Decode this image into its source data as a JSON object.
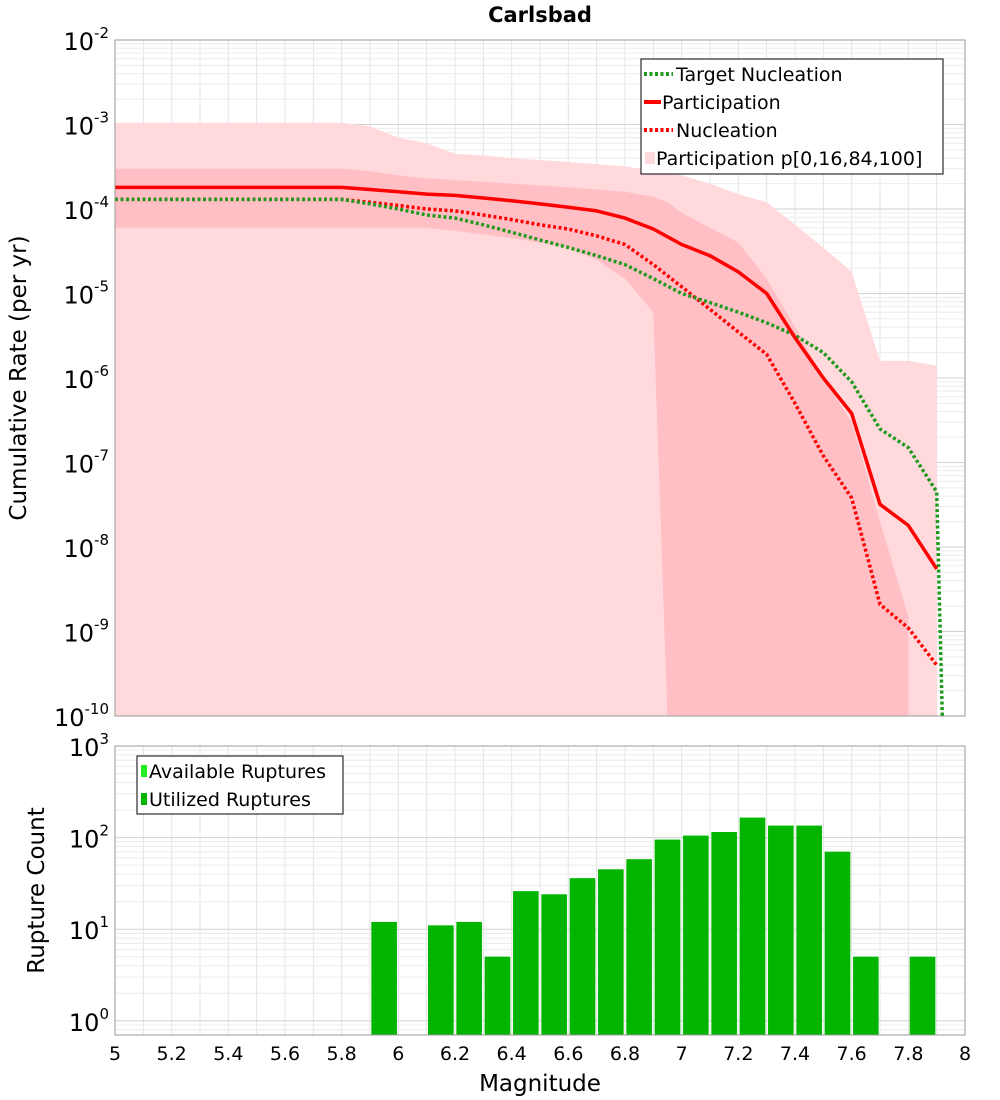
{
  "chart_data": [
    {
      "type": "line",
      "title": "Carlsbad",
      "xlabel": "",
      "ylabel": "Cumulative Rate (per yr)",
      "xlim": [
        5,
        8
      ],
      "ylim": [
        1e-10,
        0.01
      ],
      "yscale": "log",
      "grid": true,
      "legend_position": "top-right",
      "y_tick_labels": [
        {
          "base": "10",
          "exp": "-10",
          "value": 1e-10
        },
        {
          "base": "10",
          "exp": "-9",
          "value": 1e-09
        },
        {
          "base": "10",
          "exp": "-8",
          "value": 1e-08
        },
        {
          "base": "10",
          "exp": "-7",
          "value": 1e-07
        },
        {
          "base": "10",
          "exp": "-6",
          "value": 1e-06
        },
        {
          "base": "10",
          "exp": "-5",
          "value": 1e-05
        },
        {
          "base": "10",
          "exp": "-4",
          "value": 0.0001
        },
        {
          "base": "10",
          "exp": "-3",
          "value": 0.001
        },
        {
          "base": "10",
          "exp": "-2",
          "value": 0.01
        }
      ],
      "series": [
        {
          "name": "Target Nucleation",
          "color": "#1f9a1f",
          "style": "dotted",
          "x": [
            5.0,
            5.8,
            5.9,
            6.0,
            6.1,
            6.2,
            6.3,
            6.4,
            6.5,
            6.6,
            6.7,
            6.8,
            6.9,
            7.0,
            7.1,
            7.2,
            7.3,
            7.4,
            7.5,
            7.6,
            7.7,
            7.8,
            7.9,
            7.92
          ],
          "y": [
            0.00013,
            0.00013,
            0.000115,
            0.0001,
            8.5e-05,
            7.8e-05,
            6.5e-05,
            5.3e-05,
            4.3e-05,
            3.5e-05,
            2.8e-05,
            2.2e-05,
            1.5e-05,
            1e-05,
            7.8e-06,
            6e-06,
            4.5e-06,
            3.2e-06,
            2e-06,
            9e-07,
            2.5e-07,
            1.5e-07,
            4.5e-08,
            1e-10
          ]
        },
        {
          "name": "Participation",
          "color": "#ff0000",
          "style": "solid",
          "x": [
            5.0,
            5.8,
            5.9,
            6.0,
            6.1,
            6.2,
            6.3,
            6.4,
            6.5,
            6.6,
            6.7,
            6.8,
            6.9,
            7.0,
            7.1,
            7.2,
            7.3,
            7.4,
            7.5,
            7.6,
            7.7,
            7.8,
            7.9
          ],
          "y": [
            0.00018,
            0.00018,
            0.00017,
            0.00016,
            0.00015,
            0.000145,
            0.000135,
            0.000125,
            0.000115,
            0.000105,
            9.5e-05,
            7.8e-05,
            5.8e-05,
            3.8e-05,
            2.8e-05,
            1.8e-05,
            1e-05,
            3e-06,
            1e-06,
            3.8e-07,
            3.2e-08,
            1.8e-08,
            5.5e-09
          ]
        },
        {
          "name": "Nucleation",
          "color": "#ff0000",
          "style": "dotted",
          "x": [
            5.0,
            5.8,
            5.9,
            6.0,
            6.1,
            6.2,
            6.3,
            6.4,
            6.5,
            6.6,
            6.7,
            6.8,
            6.9,
            7.0,
            7.1,
            7.2,
            7.3,
            7.4,
            7.5,
            7.6,
            7.7,
            7.8,
            7.9
          ],
          "y": [
            0.00013,
            0.00013,
            0.00012,
            0.00011,
            0.0001,
            9.5e-05,
            8.5e-05,
            7.5e-05,
            6.5e-05,
            5.8e-05,
            4.8e-05,
            3.8e-05,
            2.2e-05,
            1.2e-05,
            6.5e-06,
            3.5e-06,
            1.9e-06,
            5e-07,
            1.2e-07,
            3.8e-08,
            2.1e-09,
            1.1e-09,
            4e-10
          ]
        }
      ],
      "band": {
        "name": "Participation p[0,16,84,100]",
        "outer_color": "#ffd9dc",
        "inner_color": "#ffbfc4",
        "outer": {
          "x": [
            5.0,
            5.8,
            5.9,
            6.0,
            6.1,
            6.2,
            6.3,
            6.4,
            6.5,
            6.6,
            6.7,
            6.8,
            6.9,
            7.0,
            7.1,
            7.2,
            7.3,
            7.4,
            7.5,
            7.6,
            7.7,
            7.8,
            7.9
          ],
          "upper": [
            0.00105,
            0.00105,
            0.00095,
            0.0007,
            0.0006,
            0.00045,
            0.00043,
            0.0004,
            0.00038,
            0.00036,
            0.00034,
            0.00032,
            0.00028,
            0.00025,
            0.0002,
            0.00015,
            0.00012,
            6.5e-05,
            3.5e-05,
            1.8e-05,
            1.6e-06,
            1.6e-06,
            1.4e-06
          ],
          "lower": [
            1e-10,
            1e-10,
            1e-10,
            1e-10,
            1e-10,
            1e-10,
            1e-10,
            1e-10,
            1e-10,
            1e-10,
            1e-10,
            1e-10,
            1e-10,
            1e-10,
            1e-10,
            1e-10,
            1e-10,
            1e-10,
            1e-10,
            1e-10,
            1e-10,
            1e-10,
            1e-10
          ]
        },
        "inner": {
          "x": [
            5.0,
            5.8,
            5.9,
            6.0,
            6.1,
            6.2,
            6.3,
            6.4,
            6.5,
            6.6,
            6.7,
            6.8,
            6.9,
            6.95,
            7.0,
            7.1,
            7.2,
            7.3,
            7.4,
            7.5,
            7.6,
            7.7,
            7.8
          ],
          "upper": [
            0.0003,
            0.0003,
            0.00028,
            0.00025,
            0.00023,
            0.00022,
            0.00021,
            0.0002,
            0.00019,
            0.00018,
            0.00017,
            0.00016,
            0.00014,
            0.00012,
            9e-05,
            6e-05,
            4e-05,
            1.5e-05,
            4e-06,
            1e-06,
            3e-07,
            2e-08,
            1.5e-09
          ],
          "lower": [
            6e-05,
            6e-05,
            6e-05,
            6e-05,
            6e-05,
            5.5e-05,
            5e-05,
            4.5e-05,
            4e-05,
            3.5e-05,
            2.5e-05,
            1.5e-05,
            6e-06,
            1e-10,
            1e-10,
            1e-10,
            1e-10,
            1e-10,
            1e-10,
            1e-10,
            1e-10,
            1e-10,
            1e-10
          ]
        }
      }
    },
    {
      "type": "bar",
      "title": "",
      "xlabel": "Magnitude",
      "ylabel": "Rupture Count",
      "xlim": [
        5,
        8
      ],
      "ylim": [
        0.7,
        1000
      ],
      "yscale": "log",
      "grid": true,
      "legend_position": "top-left",
      "x_tick_labels": [
        "5",
        "5.2",
        "5.4",
        "5.6",
        "5.8",
        "6",
        "6.2",
        "6.4",
        "6.6",
        "6.8",
        "7",
        "7.2",
        "7.4",
        "7.6",
        "7.8",
        "8"
      ],
      "y_tick_labels": [
        {
          "base": "10",
          "exp": "0",
          "value": 1
        },
        {
          "base": "10",
          "exp": "1",
          "value": 10
        },
        {
          "base": "10",
          "exp": "2",
          "value": 100
        },
        {
          "base": "10",
          "exp": "3",
          "value": 1000
        }
      ],
      "bar_width": 0.09,
      "series": [
        {
          "name": "Available Ruptures",
          "color": "#22ee22",
          "x": [
            5.95,
            6.15,
            6.25,
            6.35,
            6.45,
            6.55,
            6.65,
            6.75,
            6.85,
            6.95,
            7.05,
            7.15,
            7.25,
            7.35,
            7.45,
            7.55,
            7.65,
            7.85
          ],
          "values": [
            12,
            11,
            12,
            5,
            26,
            24,
            36,
            45,
            58,
            95,
            105,
            115,
            165,
            135,
            135,
            70,
            5,
            5
          ]
        },
        {
          "name": "Utilized Ruptures",
          "color": "#00b400",
          "x": [
            5.95,
            6.15,
            6.25,
            6.35,
            6.45,
            6.55,
            6.65,
            6.75,
            6.85,
            6.95,
            7.05,
            7.15,
            7.25,
            7.35,
            7.45,
            7.55,
            7.65,
            7.85
          ],
          "values": [
            12,
            11,
            12,
            5,
            26,
            24,
            36,
            45,
            58,
            95,
            105,
            115,
            165,
            135,
            135,
            70,
            5,
            5
          ]
        }
      ]
    }
  ]
}
